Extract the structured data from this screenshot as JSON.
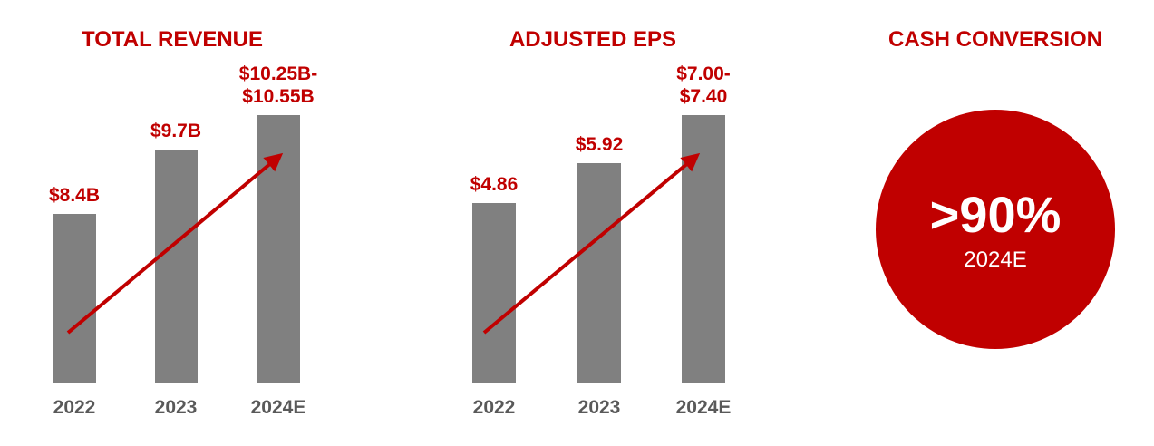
{
  "colors": {
    "accent": "#c00000",
    "bar": "#808080",
    "tick": "#595959"
  },
  "chart_data": [
    {
      "type": "bar",
      "title": "TOTAL REVENUE",
      "categories": [
        "2022",
        "2023",
        "2024E"
      ],
      "values": [
        8.4,
        9.7,
        10.4
      ],
      "range_2024E": [
        10.25,
        10.55
      ],
      "data_labels": [
        "$8.4B",
        "$9.7B",
        "$10.25B-\n$10.55B"
      ],
      "unit": "$B",
      "ylim": [
        5.0,
        10.8
      ],
      "trend_arrow": true,
      "grid": false
    },
    {
      "type": "bar",
      "title": "ADJUSTED EPS",
      "categories": [
        "2022",
        "2023",
        "2024E"
      ],
      "values": [
        4.86,
        5.92,
        7.2
      ],
      "range_2024E": [
        7.0,
        7.4
      ],
      "data_labels": [
        "$4.86",
        "$5.92",
        "$7.00-\n$7.40"
      ],
      "unit": "$",
      "ylim": [
        0.1,
        7.4
      ],
      "trend_arrow": true,
      "grid": false
    }
  ],
  "cash_conversion": {
    "title": "CASH CONVERSION",
    "value": ">90%",
    "period": "2024E"
  }
}
